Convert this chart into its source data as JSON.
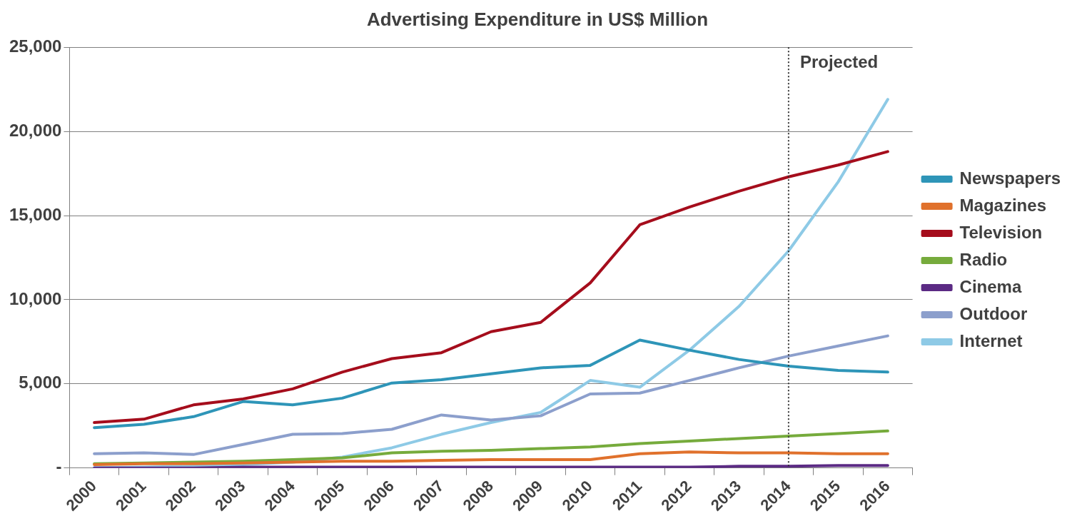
{
  "chart_data": {
    "type": "line",
    "title": "Advertising Expenditure in US$ Million",
    "categories": [
      "2000",
      "2001",
      "2002",
      "2003",
      "2004",
      "2005",
      "2006",
      "2007",
      "2008",
      "2009",
      "2010",
      "2011",
      "2012",
      "2013",
      "2014",
      "2015",
      "2016"
    ],
    "series": [
      {
        "name": "Newspapers",
        "color": "#2e95b8",
        "values": [
          2400,
          2600,
          3050,
          3950,
          3750,
          4150,
          5050,
          5250,
          5600,
          5950,
          6100,
          7600,
          7000,
          6450,
          6050,
          5800,
          5700
        ]
      },
      {
        "name": "Magazines",
        "color": "#e0712c",
        "values": [
          200,
          250,
          250,
          300,
          350,
          400,
          400,
          450,
          500,
          500,
          500,
          850,
          950,
          900,
          900,
          850,
          850
        ]
      },
      {
        "name": "Television",
        "color": "#a50d1c",
        "values": [
          2700,
          2900,
          3750,
          4100,
          4700,
          5700,
          6500,
          6850,
          8100,
          8650,
          11000,
          14450,
          15500,
          16450,
          17300,
          18000,
          18800
        ]
      },
      {
        "name": "Radio",
        "color": "#76ab3c",
        "values": [
          250,
          300,
          350,
          400,
          500,
          600,
          900,
          1000,
          1050,
          1150,
          1250,
          1450,
          1600,
          1750,
          1900,
          2050,
          2200
        ]
      },
      {
        "name": "Cinema",
        "color": "#5b2a84",
        "values": [
          0,
          0,
          0,
          50,
          50,
          50,
          50,
          50,
          50,
          50,
          50,
          50,
          50,
          100,
          100,
          150,
          150
        ]
      },
      {
        "name": "Outdoor",
        "color": "#8c9fcc",
        "values": [
          850,
          900,
          800,
          1400,
          2000,
          2050,
          2300,
          3150,
          2850,
          3100,
          4400,
          4450,
          5200,
          5950,
          6650,
          7250,
          7850
        ]
      },
      {
        "name": "Internet",
        "color": "#8ecae6",
        "values": [
          20,
          50,
          100,
          200,
          350,
          650,
          1200,
          2000,
          2700,
          3300,
          5200,
          4800,
          7000,
          9600,
          12900,
          17000,
          21900
        ]
      }
    ],
    "ylim": [
      0,
      25000
    ],
    "yticks": [
      {
        "value": 0,
        "label": "-"
      },
      {
        "value": 5000,
        "label": "5,000"
      },
      {
        "value": 10000,
        "label": "10,000"
      },
      {
        "value": 15000,
        "label": "15,000"
      },
      {
        "value": 20000,
        "label": "20,000"
      },
      {
        "value": 25000,
        "label": "25,000"
      }
    ],
    "grid": "y",
    "legend": "right",
    "marker": "none",
    "line_style": "solid",
    "ref_lines": [
      {
        "axis": "x",
        "value": "2014",
        "label": "Projected",
        "line_style": "dotted",
        "color": "#333333"
      }
    ]
  }
}
